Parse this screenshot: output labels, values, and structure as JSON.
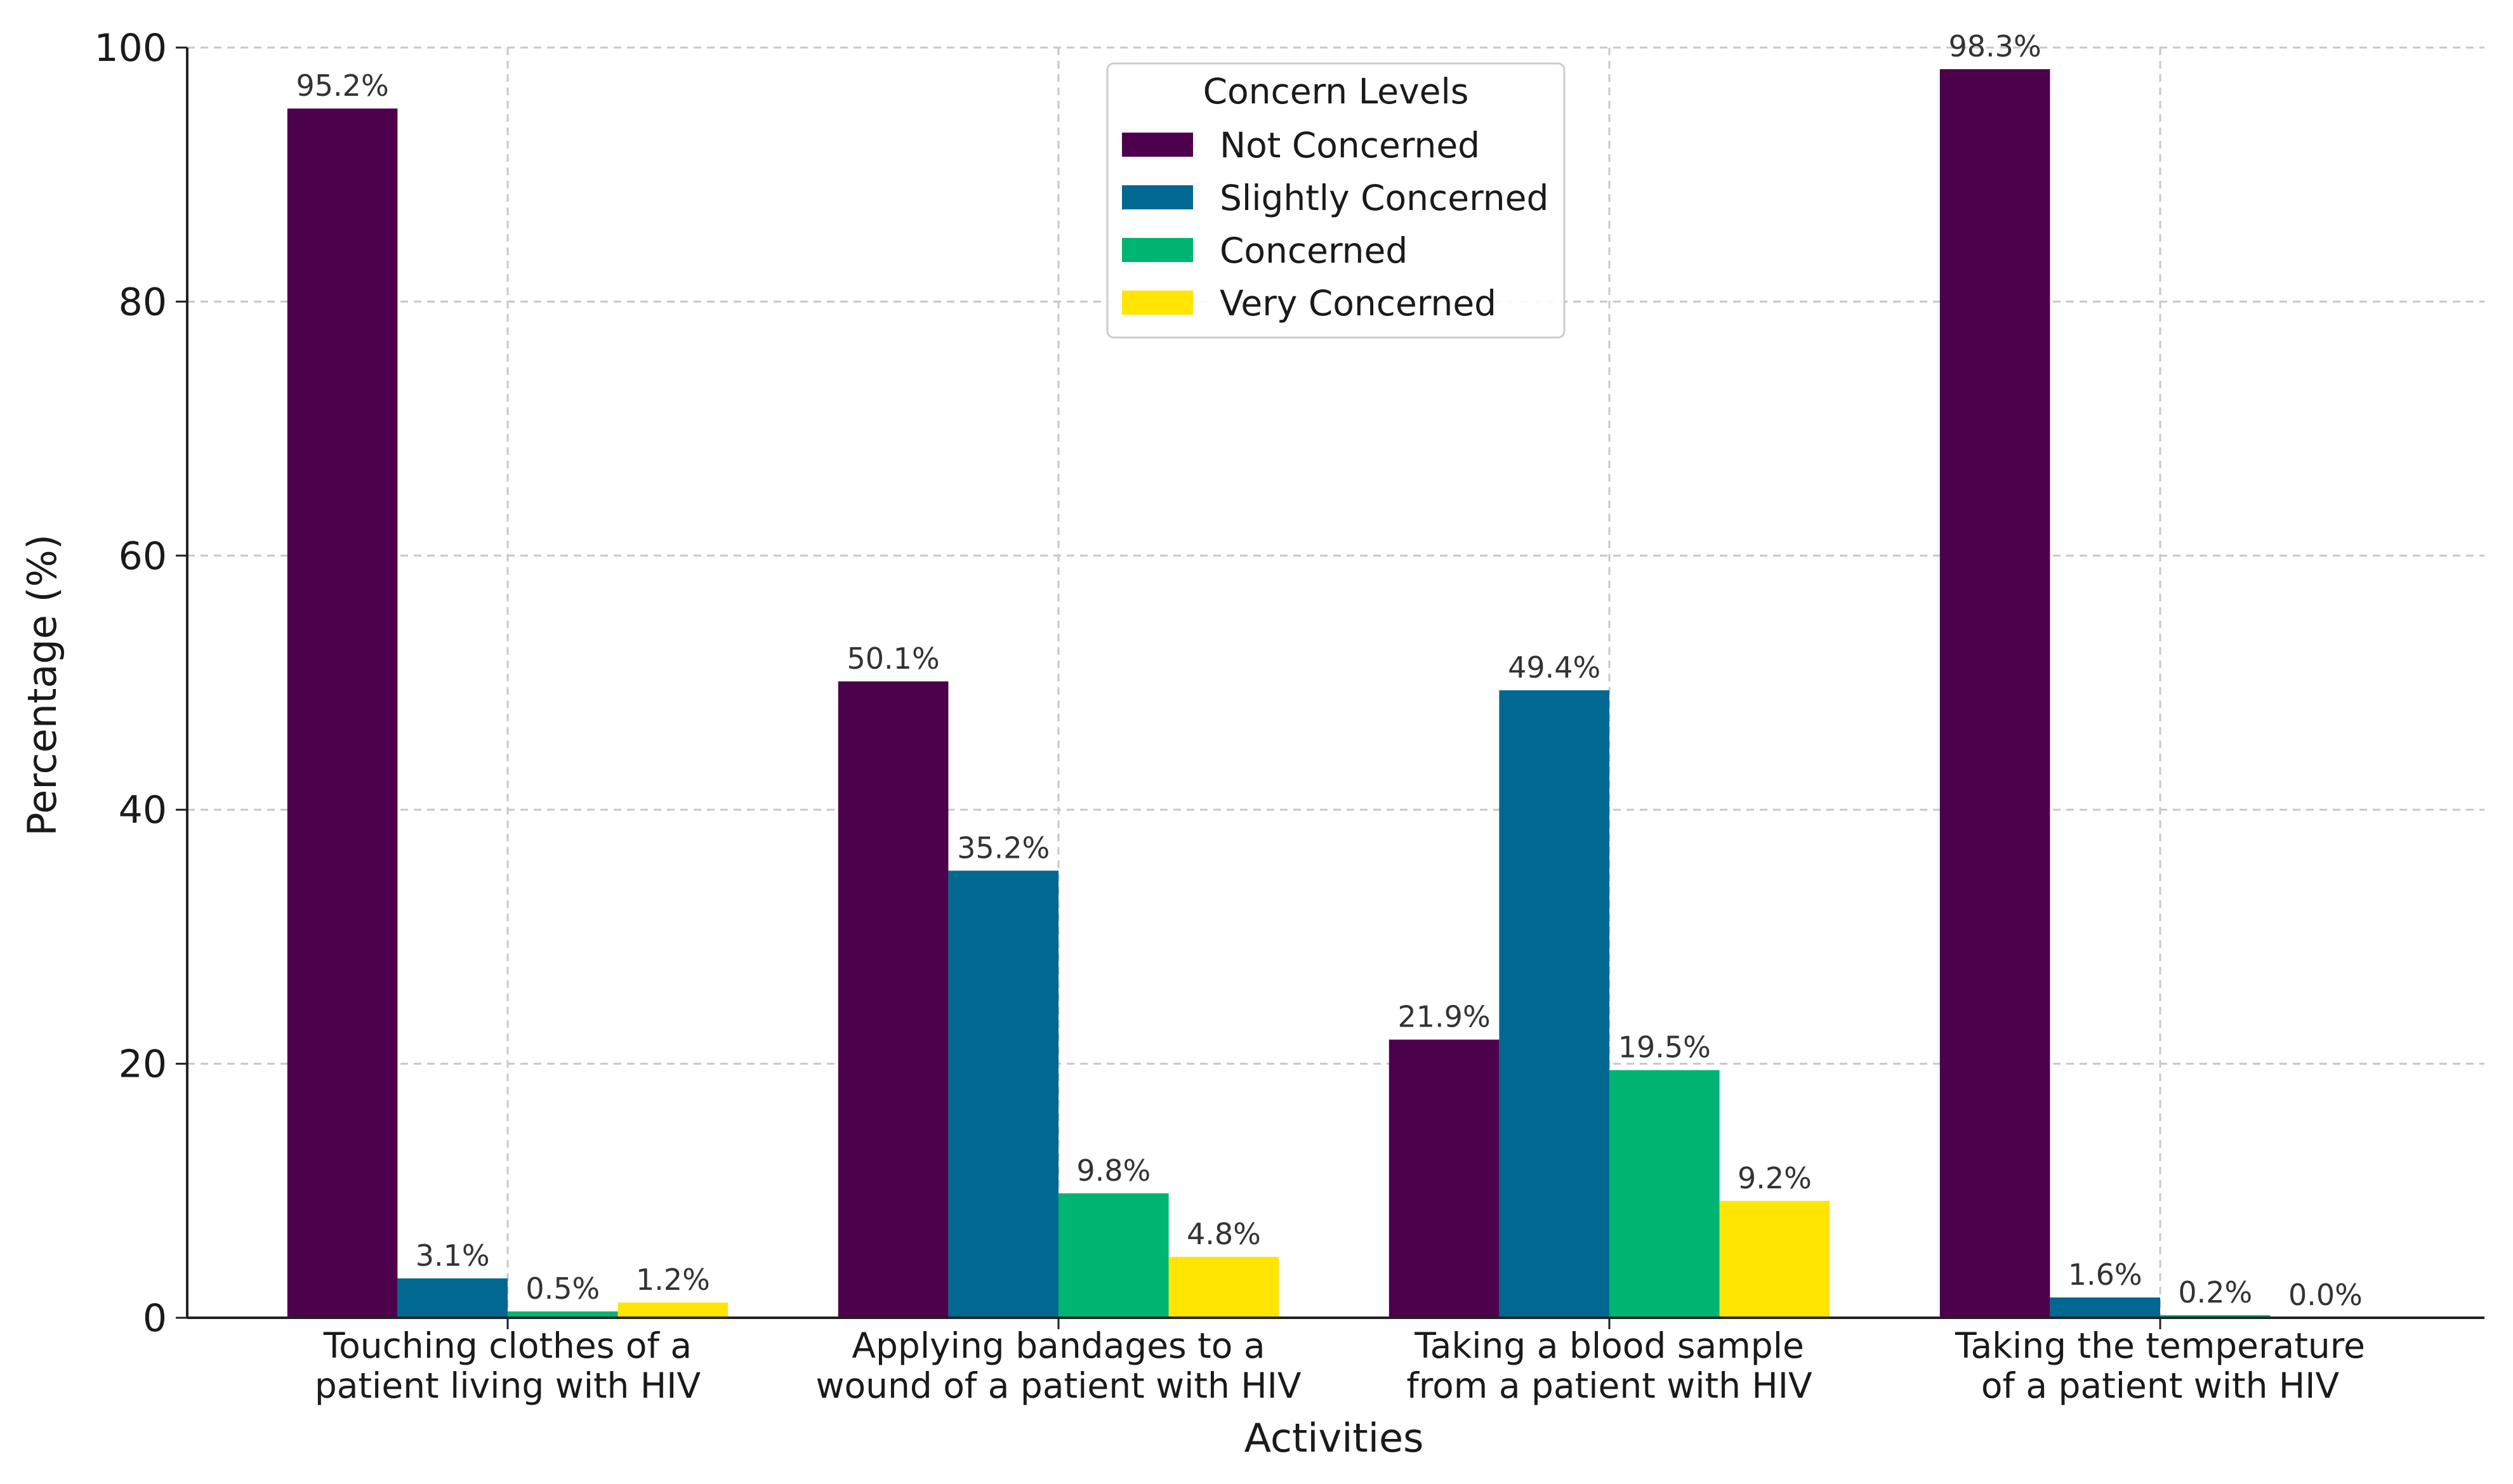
{
  "chart_data": {
    "type": "bar",
    "title": "",
    "xlabel": "Activities",
    "ylabel": "Percentage (%)",
    "ylim": [
      0,
      100
    ],
    "yticks": [
      0,
      20,
      40,
      60,
      80,
      100
    ],
    "grid": true,
    "categories": [
      [
        "Touching clothes of a",
        "patient living with HIV"
      ],
      [
        "Applying bandages to a",
        "wound of a patient with HIV"
      ],
      [
        "Taking a blood sample",
        "from a patient with HIV"
      ],
      [
        "Taking the temperature",
        "of a patient with HIV"
      ]
    ],
    "legend": {
      "title": "Concern Levels",
      "position": "top-center"
    },
    "series": [
      {
        "name": "Not Concerned",
        "color": "#4d004b",
        "values": [
          95.2,
          50.1,
          21.9,
          98.3
        ],
        "labels": [
          "95.2%",
          "50.1%",
          "21.9%",
          "98.3%"
        ]
      },
      {
        "name": "Slightly Concerned",
        "color": "#006891",
        "values": [
          3.1,
          35.2,
          49.4,
          1.6
        ],
        "labels": [
          "3.1%",
          "35.2%",
          "49.4%",
          "1.6%"
        ]
      },
      {
        "name": "Concerned",
        "color": "#00b571",
        "values": [
          0.5,
          9.8,
          19.5,
          0.2
        ],
        "labels": [
          "0.5%",
          "9.8%",
          "19.5%",
          "0.2%"
        ]
      },
      {
        "name": "Very Concerned",
        "color": "#ffe500",
        "values": [
          1.2,
          4.8,
          9.2,
          0.0
        ],
        "labels": [
          "1.2%",
          "4.8%",
          "9.2%",
          "0.0%"
        ]
      }
    ]
  }
}
